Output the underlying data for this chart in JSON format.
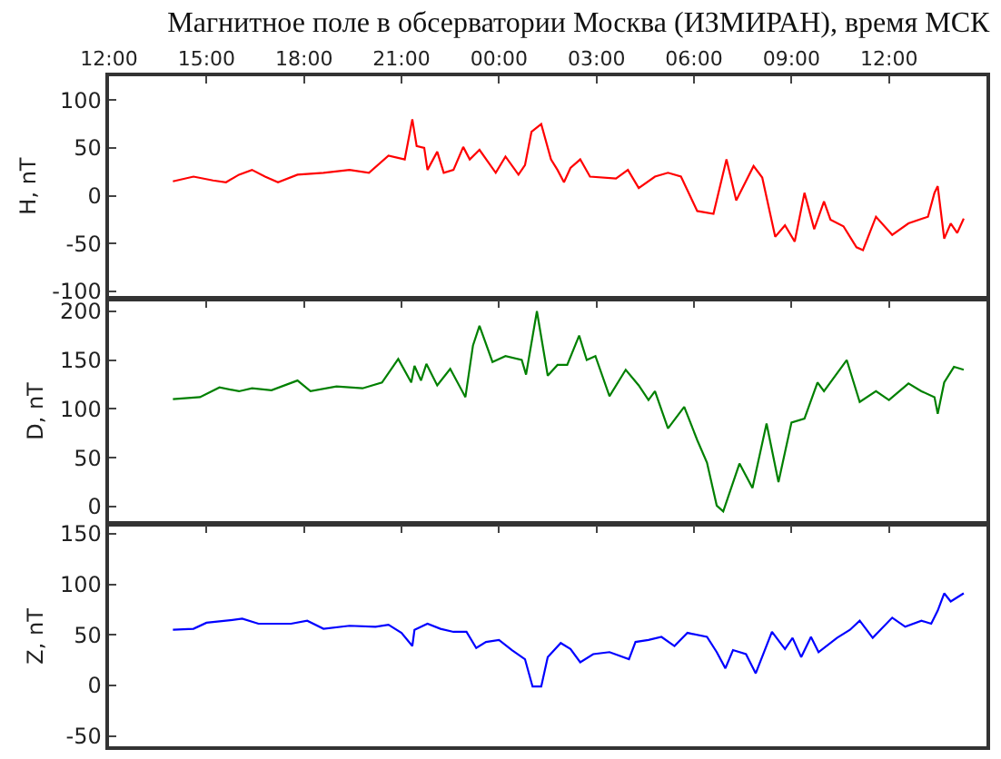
{
  "chart_data": [
    {
      "type": "line",
      "title": "Магнитное поле в обсерватории Москва (ИЗМИРАН), время МСК",
      "ylabel": "H, nT",
      "xlim": [
        "2000-01-01T12:00",
        "2000-01-02T15:00"
      ],
      "xticks": [
        {
          "value": "2000-01-01T12:00",
          "label": "12:00"
        },
        {
          "value": "2000-01-01T15:00",
          "label": "15:00"
        },
        {
          "value": "2000-01-01T18:00",
          "label": "18:00"
        },
        {
          "value": "2000-01-01T21:00",
          "label": "21:00"
        },
        {
          "value": "2000-01-02T00:00",
          "label": "00:00"
        },
        {
          "value": "2000-01-02T03:00",
          "label": "03:00"
        },
        {
          "value": "2000-01-02T06:00",
          "label": "06:00"
        },
        {
          "value": "2000-01-02T09:00",
          "label": "09:00"
        },
        {
          "value": "2000-01-02T12:00",
          "label": "12:00"
        }
      ],
      "ylim": [
        -105,
        125
      ],
      "yticks": [
        -100,
        -50,
        0,
        50,
        100
      ],
      "x": [
        "2000-01-01T13:58",
        "2000-01-01T14:36",
        "2000-01-01T15:12",
        "2000-01-01T15:36",
        "2000-01-01T16:00",
        "2000-01-01T16:24",
        "2000-01-01T16:48",
        "2000-01-01T17:12",
        "2000-01-01T17:48",
        "2000-01-01T18:36",
        "2000-01-01T19:24",
        "2000-01-01T20:00",
        "2000-01-01T20:36",
        "2000-01-01T21:06",
        "2000-01-01T21:20",
        "2000-01-01T21:28",
        "2000-01-01T21:42",
        "2000-01-01T21:48",
        "2000-01-01T22:06",
        "2000-01-01T22:18",
        "2000-01-01T22:36",
        "2000-01-01T22:54",
        "2000-01-01T23:06",
        "2000-01-01T23:24",
        "2000-01-01T23:54",
        "2000-01-02T00:12",
        "2000-01-02T00:36",
        "2000-01-02T00:48",
        "2000-01-02T01:00",
        "2000-01-02T01:18",
        "2000-01-02T01:36",
        "2000-01-02T01:48",
        "2000-01-02T02:00",
        "2000-01-02T02:12",
        "2000-01-02T02:30",
        "2000-01-02T02:48",
        "2000-01-02T03:36",
        "2000-01-02T03:58",
        "2000-01-02T04:18",
        "2000-01-02T04:48",
        "2000-01-02T05:12",
        "2000-01-02T05:36",
        "2000-01-02T06:06",
        "2000-01-02T06:36",
        "2000-01-02T07:00",
        "2000-01-02T07:18",
        "2000-01-02T07:50",
        "2000-01-02T08:06",
        "2000-01-02T08:30",
        "2000-01-02T08:48",
        "2000-01-02T09:06",
        "2000-01-02T09:24",
        "2000-01-02T09:42",
        "2000-01-02T10:00",
        "2000-01-02T10:12",
        "2000-01-02T10:36",
        "2000-01-02T11:00",
        "2000-01-02T11:12",
        "2000-01-02T11:36",
        "2000-01-02T12:06",
        "2000-01-02T12:36",
        "2000-01-02T13:12",
        "2000-01-02T13:24",
        "2000-01-02T13:30",
        "2000-01-02T13:42",
        "2000-01-02T13:54",
        "2000-01-02T14:06",
        "2000-01-02T14:18"
      ],
      "series": [
        {
          "color": "#ff0000",
          "values": [
            15,
            20,
            16,
            14,
            22,
            27,
            20,
            14,
            22,
            24,
            27,
            24,
            42,
            38,
            80,
            52,
            50,
            27,
            46,
            24,
            27,
            51,
            38,
            48,
            24,
            41,
            22,
            32,
            67,
            75,
            38,
            27,
            14,
            29,
            38,
            20,
            18,
            27,
            8,
            20,
            24,
            20,
            -16,
            -19,
            38,
            -5,
            31,
            19,
            -43,
            -31,
            -48,
            3,
            -35,
            -6,
            -25,
            -32,
            -54,
            -57,
            -22,
            -41,
            -29,
            -22,
            3,
            10,
            -45,
            -29,
            -39,
            -24
          ]
        }
      ]
    },
    {
      "type": "line",
      "ylabel": "D, nT",
      "tick_labels": "y",
      "xlim": [
        "2000-01-01T12:00",
        "2000-01-02T15:00"
      ],
      "xticks": [
        {
          "value": "2000-01-01T12:00",
          "label": null
        },
        {
          "value": "2000-01-01T15:00",
          "label": null
        },
        {
          "value": "2000-01-01T18:00",
          "label": null
        },
        {
          "value": "2000-01-01T21:00",
          "label": null
        },
        {
          "value": "2000-01-02T00:00",
          "label": null
        },
        {
          "value": "2000-01-02T03:00",
          "label": null
        },
        {
          "value": "2000-01-02T06:00",
          "label": null
        },
        {
          "value": "2000-01-02T09:00",
          "label": null
        },
        {
          "value": "2000-01-02T12:00",
          "label": null
        }
      ],
      "ylim": [
        -15,
        210
      ],
      "yticks": [
        0,
        50,
        100,
        150,
        200
      ],
      "x": [
        "2000-01-01T13:58",
        "2000-01-01T14:48",
        "2000-01-01T15:24",
        "2000-01-01T16:00",
        "2000-01-01T16:24",
        "2000-01-01T17:00",
        "2000-01-01T17:48",
        "2000-01-01T18:12",
        "2000-01-01T19:00",
        "2000-01-01T19:48",
        "2000-01-01T20:24",
        "2000-01-01T20:54",
        "2000-01-01T21:18",
        "2000-01-01T21:24",
        "2000-01-01T21:36",
        "2000-01-01T21:46",
        "2000-01-01T22:06",
        "2000-01-01T22:30",
        "2000-01-01T22:58",
        "2000-01-01T23:12",
        "2000-01-01T23:24",
        "2000-01-01T23:48",
        "2000-01-02T00:12",
        "2000-01-02T00:42",
        "2000-01-02T00:50",
        "2000-01-02T01:10",
        "2000-01-02T01:30",
        "2000-01-02T01:48",
        "2000-01-02T02:06",
        "2000-01-02T02:28",
        "2000-01-02T02:42",
        "2000-01-02T02:58",
        "2000-01-02T03:24",
        "2000-01-02T03:54",
        "2000-01-02T04:18",
        "2000-01-02T04:36",
        "2000-01-02T04:48",
        "2000-01-02T05:12",
        "2000-01-02T05:42",
        "2000-01-02T06:06",
        "2000-01-02T06:24",
        "2000-01-02T06:42",
        "2000-01-02T06:54",
        "2000-01-02T07:24",
        "2000-01-02T07:48",
        "2000-01-02T08:14",
        "2000-01-02T08:36",
        "2000-01-02T09:00",
        "2000-01-02T09:24",
        "2000-01-02T09:48",
        "2000-01-02T10:00",
        "2000-01-02T10:42",
        "2000-01-02T11:06",
        "2000-01-02T11:36",
        "2000-01-02T12:00",
        "2000-01-02T12:36",
        "2000-01-02T13:00",
        "2000-01-02T13:24",
        "2000-01-02T13:30",
        "2000-01-02T13:42",
        "2000-01-02T14:00",
        "2000-01-02T14:18"
      ],
      "series": [
        {
          "color": "#008000",
          "values": [
            110,
            112,
            122,
            118,
            121,
            119,
            129,
            118,
            123,
            121,
            127,
            151,
            127,
            144,
            129,
            146,
            124,
            141,
            112,
            165,
            185,
            148,
            154,
            150,
            135,
            200,
            134,
            145,
            145,
            175,
            150,
            154,
            113,
            140,
            124,
            109,
            118,
            80,
            102,
            68,
            45,
            1,
            -5,
            44,
            19,
            85,
            25,
            86,
            90,
            127,
            118,
            150,
            107,
            118,
            109,
            126,
            118,
            112,
            95,
            127,
            143,
            140
          ]
        }
      ]
    },
    {
      "type": "line",
      "ylabel": "Z, nT",
      "tick_labels": "y",
      "xlim": [
        "2000-01-01T12:00",
        "2000-01-02T15:00"
      ],
      "xticks": [
        {
          "value": "2000-01-01T12:00",
          "label": null
        },
        {
          "value": "2000-01-01T15:00",
          "label": null
        },
        {
          "value": "2000-01-01T18:00",
          "label": null
        },
        {
          "value": "2000-01-01T21:00",
          "label": null
        },
        {
          "value": "2000-01-02T00:00",
          "label": null
        },
        {
          "value": "2000-01-02T03:00",
          "label": null
        },
        {
          "value": "2000-01-02T06:00",
          "label": null
        },
        {
          "value": "2000-01-02T09:00",
          "label": null
        },
        {
          "value": "2000-01-02T12:00",
          "label": null
        }
      ],
      "ylim": [
        -60,
        157
      ],
      "yticks": [
        -50,
        0,
        50,
        100,
        150
      ],
      "x": [
        "2000-01-01T13:58",
        "2000-01-01T14:36",
        "2000-01-01T15:00",
        "2000-01-01T15:36",
        "2000-01-01T16:06",
        "2000-01-01T16:36",
        "2000-01-01T17:36",
        "2000-01-01T18:06",
        "2000-01-01T18:36",
        "2000-01-01T19:24",
        "2000-01-01T20:12",
        "2000-01-01T20:36",
        "2000-01-01T21:00",
        "2000-01-01T21:20",
        "2000-01-01T21:24",
        "2000-01-01T21:48",
        "2000-01-01T22:12",
        "2000-01-01T22:36",
        "2000-01-01T23:00",
        "2000-01-01T23:18",
        "2000-01-01T23:36",
        "2000-01-02T00:00",
        "2000-01-02T00:24",
        "2000-01-02T00:48",
        "2000-01-02T01:02",
        "2000-01-02T01:18",
        "2000-01-02T01:30",
        "2000-01-02T01:54",
        "2000-01-02T02:12",
        "2000-01-02T02:30",
        "2000-01-02T02:54",
        "2000-01-02T03:24",
        "2000-01-02T04:00",
        "2000-01-02T04:12",
        "2000-01-02T04:36",
        "2000-01-02T05:00",
        "2000-01-02T05:24",
        "2000-01-02T05:48",
        "2000-01-02T06:24",
        "2000-01-02T06:42",
        "2000-01-02T06:58",
        "2000-01-02T07:12",
        "2000-01-02T07:36",
        "2000-01-02T07:54",
        "2000-01-02T08:24",
        "2000-01-02T08:48",
        "2000-01-02T09:02",
        "2000-01-02T09:18",
        "2000-01-02T09:36",
        "2000-01-02T09:50",
        "2000-01-02T10:24",
        "2000-01-02T10:48",
        "2000-01-02T11:06",
        "2000-01-02T11:30",
        "2000-01-02T12:06",
        "2000-01-02T12:30",
        "2000-01-02T13:00",
        "2000-01-02T13:18",
        "2000-01-02T13:30",
        "2000-01-02T13:42",
        "2000-01-02T13:54",
        "2000-01-02T14:18"
      ],
      "series": [
        {
          "color": "#0000ff",
          "values": [
            55,
            56,
            62,
            64,
            66,
            61,
            61,
            64,
            56,
            59,
            58,
            60,
            52,
            39,
            55,
            61,
            56,
            53,
            53,
            37,
            43,
            45,
            35,
            26,
            -1,
            -1,
            28,
            42,
            36,
            23,
            31,
            33,
            26,
            43,
            45,
            48,
            39,
            52,
            48,
            33,
            17,
            35,
            31,
            12,
            53,
            36,
            47,
            28,
            48,
            33,
            47,
            55,
            64,
            47,
            67,
            58,
            64,
            61,
            74,
            91,
            83,
            91
          ]
        }
      ]
    }
  ]
}
